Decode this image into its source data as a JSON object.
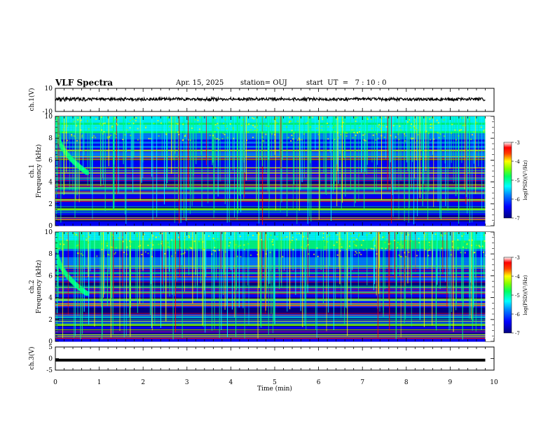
{
  "header": {
    "title": "VLF Spectra",
    "date": "Apr. 15, 2025",
    "station": "station= OUJ",
    "start": "start  UT  =   7 : 10 : 0"
  },
  "chart_data": [
    {
      "type": "line",
      "name": "ch1-waveform",
      "ylabel": "ch.1(V)",
      "ylim": [
        -10,
        10
      ],
      "yticks": [
        "10",
        "-10"
      ],
      "xlim": [
        0,
        10
      ],
      "description_level": "dense broadband trace around 0 V"
    },
    {
      "type": "heatmap",
      "name": "ch1-spectrogram",
      "ylabel_top": "ch.1",
      "ylabel": "Frequency (kHz)",
      "ylim": [
        0,
        10
      ],
      "yticks": [
        "0",
        "2",
        "4",
        "6",
        "8",
        "10"
      ],
      "xlim": [
        0,
        10
      ],
      "colorbar": {
        "label": "log(PSD)(V²/Hz)",
        "range": [
          -7,
          -3
        ],
        "ticks": [
          "-3",
          "-4",
          "-5",
          "-6",
          "-7"
        ]
      }
    },
    {
      "type": "heatmap",
      "name": "ch2-spectrogram",
      "ylabel_top": "ch.2",
      "ylabel": "Frequency (kHz)",
      "ylim": [
        0,
        10
      ],
      "yticks": [
        "0",
        "2",
        "4",
        "6",
        "8",
        "10"
      ],
      "xlim": [
        0,
        10
      ],
      "colorbar": {
        "label": "log(PSD)(V²/Hz)",
        "range": [
          -7,
          -3
        ],
        "ticks": [
          "-3",
          "-4",
          "-5",
          "-6",
          "-7"
        ]
      }
    },
    {
      "type": "line",
      "name": "ch3-waveform",
      "ylabel": "ch.3(V)",
      "ylim": [
        -5,
        5
      ],
      "yticks": [
        "5",
        "0",
        "-5"
      ],
      "xlim": [
        0,
        10
      ],
      "values_approx": {
        "x": [
          0,
          9.8
        ],
        "y": [
          -0.7,
          -0.7
        ]
      }
    }
  ],
  "xaxis": {
    "label": "Time (min)",
    "ticks": [
      "0",
      "1",
      "2",
      "3",
      "4",
      "5",
      "6",
      "7",
      "8",
      "9",
      "10"
    ]
  },
  "colors": {
    "colormap": [
      "#000080",
      "#0000ff",
      "#0080ff",
      "#00ffff",
      "#00ff80",
      "#80ff00",
      "#ffff00",
      "#ff8000",
      "#ff0000",
      "#ff00ff"
    ]
  }
}
